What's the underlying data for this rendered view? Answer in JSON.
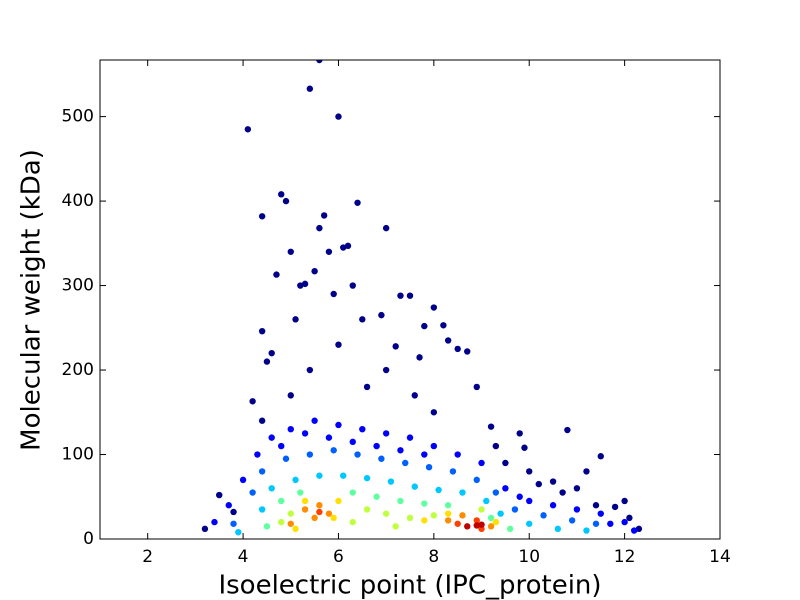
{
  "chart_data": {
    "type": "scatter",
    "x_label": "Isoelectric point (IPC_protein)",
    "y_label": "Molecular weight (kDa)",
    "xlim": [
      1,
      14
    ],
    "xticks": [
      2,
      4,
      6,
      8,
      10,
      12,
      14
    ],
    "ylim": [
      0,
      567
    ],
    "yticks": [
      0,
      100,
      200,
      300,
      400,
      500
    ],
    "series": [
      {
        "color": "#00008b",
        "x": [
          4.1,
          5.4,
          5.6,
          6.0,
          4.8,
          4.9,
          4.4,
          5.7,
          6.4,
          5.0,
          5.6,
          5.8,
          6.1,
          6.2,
          7.0,
          4.7,
          5.2,
          5.5,
          5.3,
          6.3,
          5.9,
          7.3,
          7.5,
          8.0,
          4.4,
          6.5,
          6.9,
          7.8,
          8.2,
          8.3,
          8.7,
          4.2,
          4.6,
          7.2,
          7.7,
          8.5,
          9.2,
          9.8,
          10.8,
          11.5,
          11.2,
          11.0,
          12.0,
          9.9,
          10.5,
          10.2,
          3.5,
          3.2,
          3.8,
          11.8,
          12.3,
          12.1,
          9.5,
          7.0,
          6.0,
          5.1,
          4.5,
          8.9,
          7.6,
          6.6,
          5.4,
          4.4,
          9.3,
          10.0,
          10.7,
          11.4,
          8.0,
          5.0
        ],
        "values": [
          485,
          533,
          567,
          500,
          408,
          400,
          382,
          383,
          398,
          340,
          368,
          340,
          345,
          347,
          368,
          313,
          300,
          317,
          302,
          300,
          290,
          288,
          288,
          274,
          246,
          260,
          265,
          252,
          253,
          235,
          222,
          163,
          220,
          228,
          215,
          225,
          133,
          125,
          129,
          98,
          80,
          60,
          45,
          108,
          68,
          65,
          52,
          12,
          32,
          38,
          12,
          25,
          90,
          200,
          230,
          260,
          210,
          180,
          170,
          180,
          200,
          140,
          110,
          80,
          55,
          40,
          150,
          170
        ]
      },
      {
        "color": "#0000ff",
        "x": [
          4.3,
          4.6,
          5.0,
          5.5,
          6.0,
          6.5,
          7.0,
          7.5,
          8.0,
          8.5,
          9.0,
          4.8,
          5.3,
          5.8,
          6.3,
          6.8,
          7.3,
          7.8,
          9.5,
          10.0,
          10.5,
          11.0,
          11.5,
          12.0,
          3.7,
          3.4,
          12.2,
          11.7,
          4.0,
          9.8
        ],
        "values": [
          100,
          120,
          130,
          140,
          135,
          130,
          125,
          120,
          110,
          100,
          90,
          110,
          125,
          120,
          115,
          110,
          105,
          100,
          60,
          45,
          40,
          35,
          30,
          20,
          40,
          20,
          10,
          18,
          70,
          50
        ]
      },
      {
        "color": "#0060ff",
        "x": [
          4.4,
          4.9,
          5.4,
          5.9,
          6.4,
          6.9,
          7.4,
          7.9,
          8.4,
          8.9,
          9.3,
          4.2,
          9.7,
          10.3,
          10.9,
          11.4,
          3.8
        ],
        "values": [
          80,
          95,
          100,
          105,
          100,
          95,
          90,
          85,
          80,
          70,
          55,
          55,
          35,
          28,
          22,
          18,
          18
        ]
      },
      {
        "color": "#00c8ff",
        "x": [
          4.6,
          5.1,
          5.6,
          6.1,
          6.6,
          7.1,
          7.6,
          8.1,
          8.6,
          9.1,
          4.4,
          9.4,
          10.0,
          10.6,
          11.2,
          3.9
        ],
        "values": [
          60,
          70,
          75,
          75,
          72,
          68,
          62,
          58,
          55,
          45,
          35,
          30,
          18,
          12,
          10,
          8
        ]
      },
      {
        "color": "#60ffa0",
        "x": [
          4.8,
          5.2,
          6.3,
          6.8,
          7.3,
          7.8,
          8.3,
          9.2,
          4.5,
          9.6
        ],
        "values": [
          45,
          55,
          55,
          50,
          45,
          42,
          40,
          25,
          15,
          12
        ]
      },
      {
        "color": "#c0ff40",
        "x": [
          5.0,
          6.6,
          7.0,
          7.5,
          8.0,
          6.3,
          7.2,
          9.0,
          4.8
        ],
        "values": [
          30,
          35,
          30,
          25,
          28,
          20,
          15,
          35,
          20
        ]
      },
      {
        "color": "#ffe000",
        "x": [
          5.3,
          5.9,
          6.0,
          7.8,
          8.3,
          9.3,
          5.1
        ],
        "values": [
          45,
          25,
          45,
          22,
          30,
          20,
          12
        ]
      },
      {
        "color": "#ff8c00",
        "x": [
          5.3,
          5.6,
          5.8,
          5.0,
          8.3,
          8.6,
          9.2,
          5.5
        ],
        "values": [
          35,
          40,
          30,
          18,
          22,
          28,
          15,
          25
        ]
      },
      {
        "color": "#ff4000",
        "x": [
          8.5,
          8.9,
          9.0,
          5.6
        ],
        "values": [
          18,
          22,
          12,
          32
        ]
      },
      {
        "color": "#c00000",
        "x": [
          8.7,
          8.9,
          9.0
        ],
        "values": [
          15,
          16,
          17
        ]
      }
    ]
  }
}
